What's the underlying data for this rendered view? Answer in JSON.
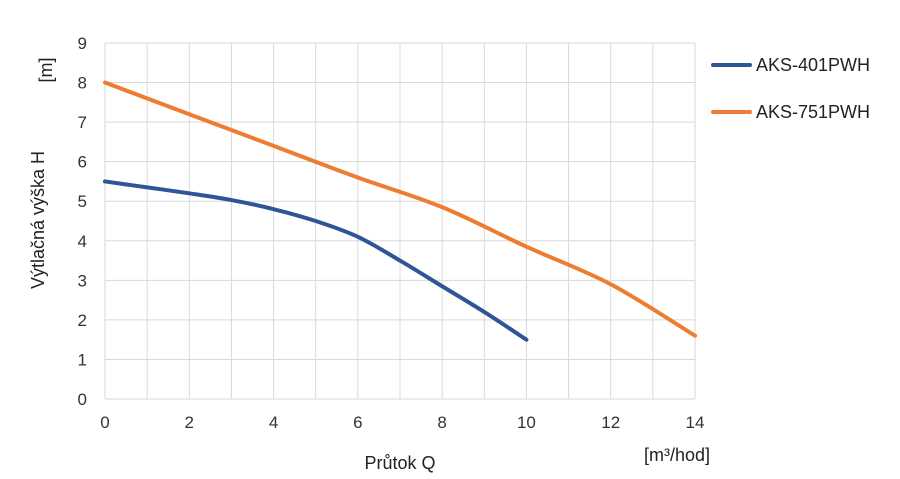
{
  "chart_data": {
    "type": "line",
    "title": "",
    "xlabel": "Průtok Q",
    "xunit": "[m³/hod]",
    "ylabel": "Výtlačná výška H",
    "yunit": "[m]",
    "xlim": [
      0,
      14
    ],
    "ylim": [
      0,
      9
    ],
    "xticks": [
      "0",
      "2",
      "4",
      "6",
      "8",
      "10",
      "12",
      "14"
    ],
    "yticks": [
      "0",
      "1",
      "2",
      "3",
      "4",
      "5",
      "6",
      "7",
      "8",
      "9"
    ],
    "grid": true,
    "legend_position": "right",
    "series": [
      {
        "name": "AKS-401PWH",
        "color": "#2f5597",
        "x": [
          0,
          1,
          2,
          3,
          4,
          5,
          6,
          7,
          8,
          9,
          10
        ],
        "y": [
          5.5,
          5.35,
          5.2,
          5.03,
          4.8,
          4.5,
          4.1,
          3.5,
          2.85,
          2.2,
          1.5
        ]
      },
      {
        "name": "AKS-751PWH",
        "color": "#ed7d31",
        "x": [
          0,
          2,
          4,
          6,
          8,
          10,
          12,
          14
        ],
        "y": [
          8.0,
          7.2,
          6.4,
          5.6,
          4.85,
          3.85,
          2.9,
          1.6
        ]
      }
    ]
  }
}
